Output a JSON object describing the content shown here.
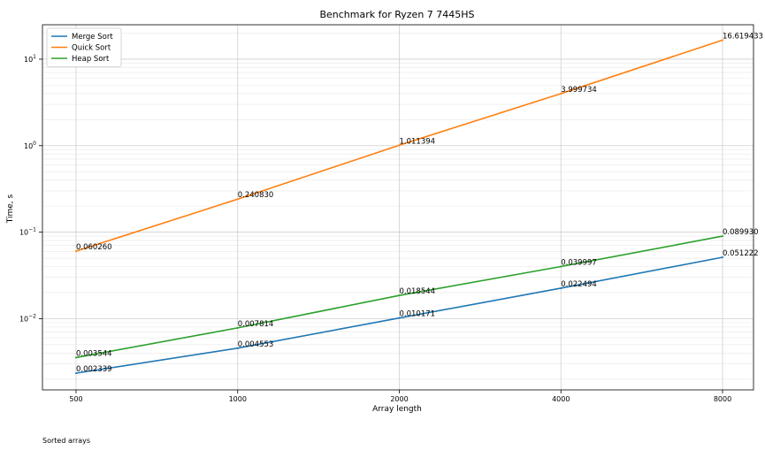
{
  "chart_data": {
    "type": "line",
    "title": "Benchmark for Ryzen 7 7445HS",
    "xlabel": "Array length",
    "ylabel": "Time, s",
    "x": [
      500,
      1000,
      2000,
      4000,
      8000
    ],
    "x_scale": "log",
    "y_scale": "log",
    "ylim": [
      0.0015,
      25
    ],
    "y_tick_values": [
      0.01,
      0.1,
      1,
      10
    ],
    "grid": true,
    "legend_position": "top-left",
    "series": [
      {
        "name": "Merge Sort",
        "color": "#1f77b4",
        "values": [
          0.002339,
          0.004553,
          0.010171,
          0.022494,
          0.051222
        ],
        "labels": [
          "0.002339",
          "0.004553",
          "0.010171",
          "0.022494",
          "0.051222"
        ]
      },
      {
        "name": "Quick Sort",
        "color": "#ff7f0e",
        "values": [
          0.06026,
          0.24083,
          1.011394,
          3.999734,
          16.619433
        ],
        "labels": [
          "0.060260",
          "0.240830",
          "1.011394",
          "3.999734",
          "16.619433"
        ]
      },
      {
        "name": "Heap Sort",
        "color": "#2ca02c",
        "values": [
          0.003544,
          0.007814,
          0.018544,
          0.039997,
          0.08993
        ],
        "labels": [
          "0.003544",
          "0.007814",
          "0.018544",
          "0.039997",
          "0.089930"
        ]
      }
    ]
  },
  "footer": {
    "note": "Sorted arrays"
  }
}
